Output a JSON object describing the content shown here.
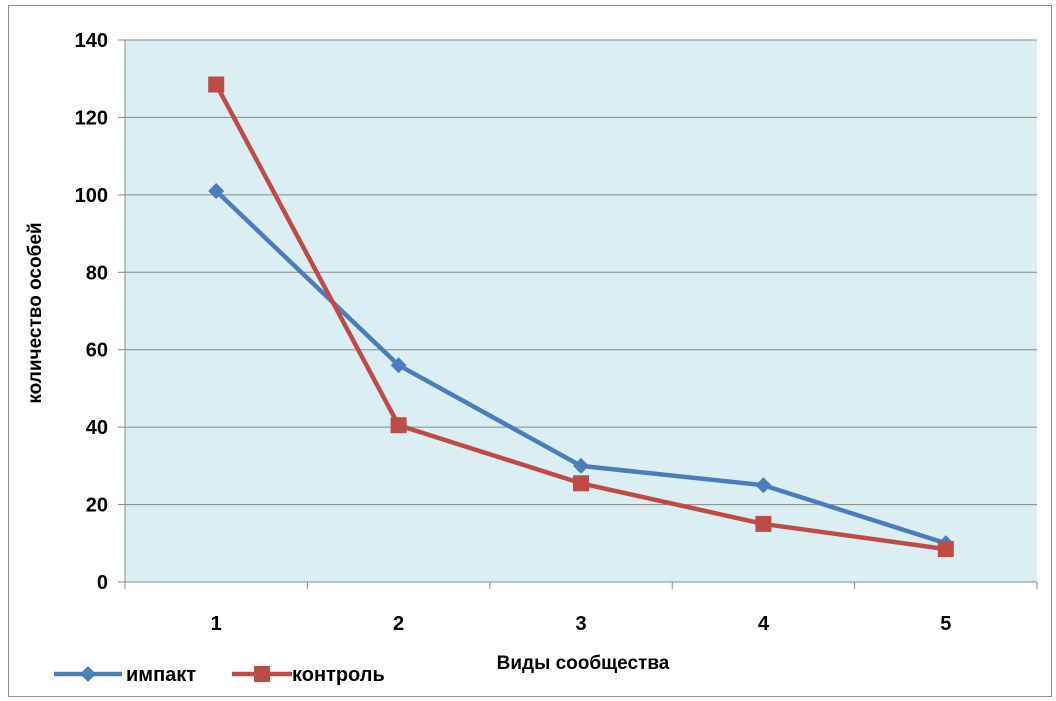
{
  "chart_data": {
    "type": "line",
    "categories": [
      "1",
      "2",
      "3",
      "4",
      "5"
    ],
    "series": [
      {
        "name": "импакт",
        "values": [
          101,
          56,
          30,
          25,
          10
        ],
        "color": "#4a7ebb",
        "marker": "diamond"
      },
      {
        "name": "контроль",
        "values": [
          128.5,
          40.5,
          25.5,
          15,
          8.5
        ],
        "color": "#be4b48",
        "marker": "square"
      }
    ],
    "y_ticks": [
      "0",
      "20",
      "40",
      "60",
      "80",
      "100",
      "120",
      "140"
    ],
    "ylim": [
      0,
      140
    ],
    "xlabel": "Виды сообщества",
    "ylabel": "количество особей",
    "plot_background": "#dbeef4",
    "grid": true,
    "legend_position": "bottom-left"
  }
}
